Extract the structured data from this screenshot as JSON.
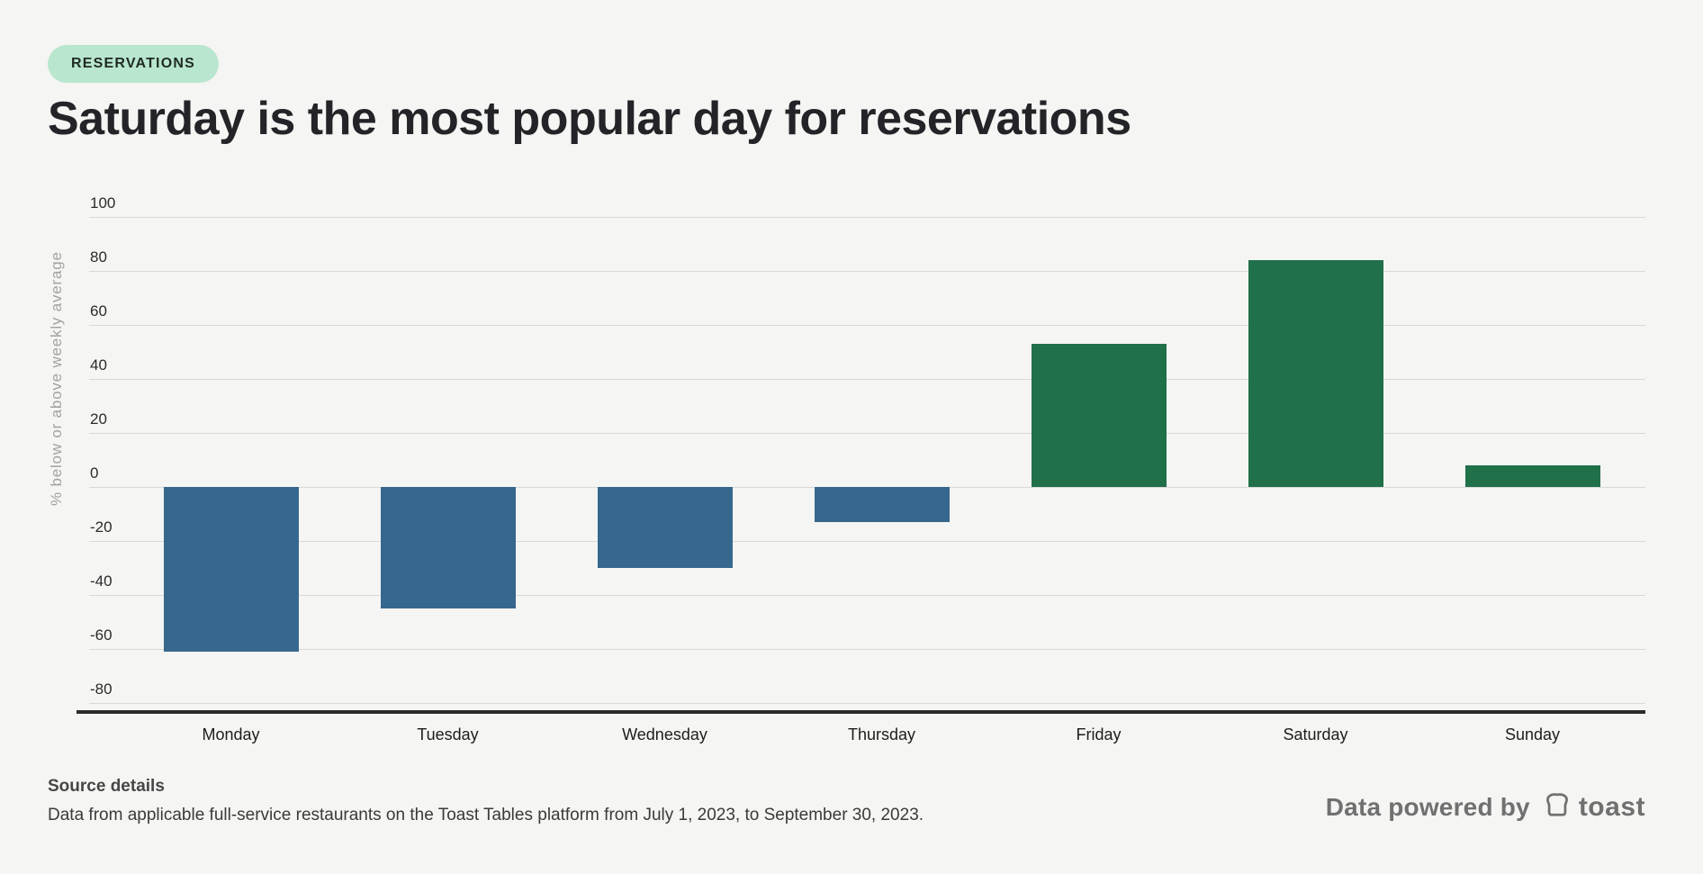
{
  "page": {
    "background": "#f5f5f3"
  },
  "badge": {
    "label": "RESERVATIONS",
    "bg": "#b9e6ce"
  },
  "title": "Saturday is the most popular day for reservations",
  "chart_data": {
    "type": "bar",
    "categories": [
      "Monday",
      "Tuesday",
      "Wednesday",
      "Thursday",
      "Friday",
      "Saturday",
      "Sunday"
    ],
    "values": [
      -61,
      -45,
      -30,
      -13,
      53,
      84,
      8
    ],
    "title": "Saturday is the most popular day for reservations",
    "xlabel": "",
    "ylabel": "% below or above weekly average",
    "ylim": [
      -80,
      100
    ],
    "y_ticks": [
      100,
      80,
      60,
      40,
      20,
      0,
      -20,
      -40,
      -60,
      -80
    ],
    "grid": true,
    "legend": "none",
    "colors": {
      "positive": "#20704a",
      "negative": "#36688e"
    }
  },
  "footer": {
    "source_heading": "Source details",
    "source_text": "Data from applicable full-service restaurants on the Toast Tables platform from July 1, 2023, to September 30, 2023.",
    "powered_by": "Data powered by",
    "brand": "toast"
  }
}
